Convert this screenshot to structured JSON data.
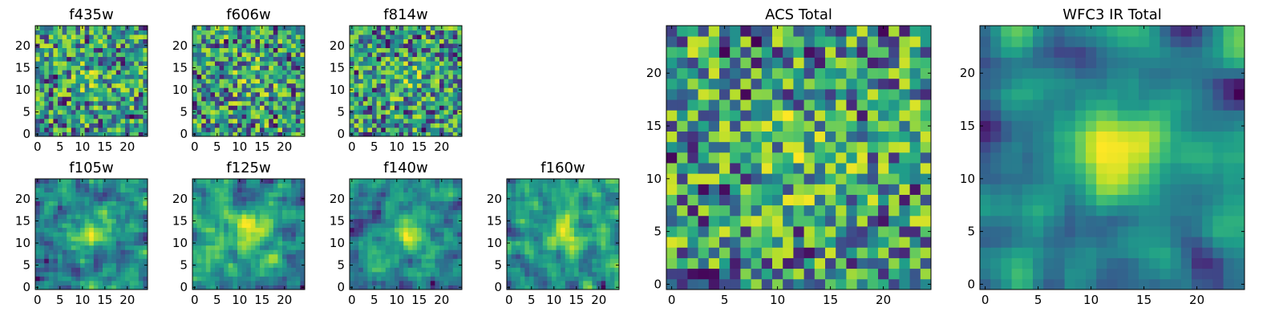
{
  "chart_data": [
    {
      "type": "heatmap",
      "title": "f435w",
      "grid_size": 25,
      "xticks": [
        0,
        5,
        10,
        15,
        20
      ],
      "yticks": [
        0,
        5,
        10,
        15,
        20
      ],
      "colormap": "viridis",
      "seed": 11,
      "smoothing": 0
    },
    {
      "type": "heatmap",
      "title": "f606w",
      "grid_size": 25,
      "xticks": [
        0,
        5,
        10,
        15,
        20
      ],
      "yticks": [
        0,
        5,
        10,
        15,
        20
      ],
      "colormap": "viridis",
      "seed": 23,
      "smoothing": 0
    },
    {
      "type": "heatmap",
      "title": "f814w",
      "grid_size": 25,
      "xticks": [
        0,
        5,
        10,
        15,
        20
      ],
      "yticks": [
        0,
        5,
        10,
        15,
        20
      ],
      "colormap": "viridis",
      "seed": 37,
      "smoothing": 0
    },
    {
      "type": "heatmap",
      "title": "f105w",
      "grid_size": 25,
      "xticks": [
        0,
        5,
        10,
        15,
        20
      ],
      "yticks": [
        0,
        5,
        10,
        15,
        20
      ],
      "colormap": "viridis",
      "seed": 41,
      "smoothing": 1
    },
    {
      "type": "heatmap",
      "title": "f125w",
      "grid_size": 25,
      "xticks": [
        0,
        5,
        10,
        15,
        20
      ],
      "yticks": [
        0,
        5,
        10,
        15,
        20
      ],
      "colormap": "viridis",
      "seed": 53,
      "smoothing": 1
    },
    {
      "type": "heatmap",
      "title": "f140w",
      "grid_size": 25,
      "xticks": [
        0,
        5,
        10,
        15,
        20
      ],
      "yticks": [
        0,
        5,
        10,
        15,
        20
      ],
      "colormap": "viridis",
      "seed": 67,
      "smoothing": 1
    },
    {
      "type": "heatmap",
      "title": "f160w",
      "grid_size": 25,
      "xticks": [
        0,
        5,
        10,
        15,
        20
      ],
      "yticks": [
        0,
        5,
        10,
        15,
        20
      ],
      "colormap": "viridis",
      "seed": 79,
      "smoothing": 1
    },
    {
      "type": "heatmap",
      "title": "ACS Total",
      "grid_size": 25,
      "xticks": [
        0,
        5,
        10,
        15,
        20
      ],
      "yticks": [
        0,
        5,
        10,
        15,
        20
      ],
      "colormap": "viridis",
      "seed": 97,
      "smoothing": 0
    },
    {
      "type": "heatmap",
      "title": "WFC3 IR Total",
      "grid_size": 25,
      "xticks": [
        0,
        5,
        10,
        15,
        20
      ],
      "yticks": [
        0,
        5,
        10,
        15,
        20
      ],
      "colormap": "viridis",
      "seed": 113,
      "smoothing": 2
    }
  ]
}
